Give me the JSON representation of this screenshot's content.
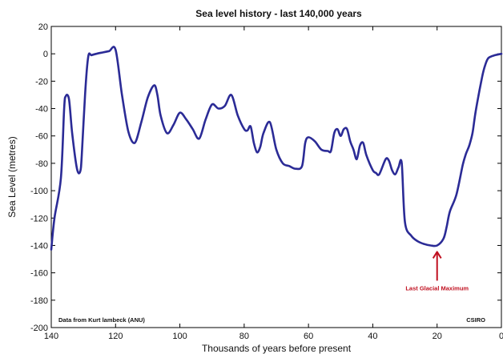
{
  "chart_data": {
    "type": "line",
    "title": "Sea level history - last 140,000 years",
    "xlabel": "Thousands of years before present",
    "ylabel": "Sea Level (metres)",
    "xlim": [
      140,
      0
    ],
    "ylim": [
      -200,
      20
    ],
    "x_reversed": true,
    "grid": false,
    "x_ticks": [
      140,
      120,
      100,
      80,
      60,
      40,
      20,
      0
    ],
    "y_ticks": [
      20,
      0,
      -20,
      -40,
      -60,
      -80,
      -100,
      -120,
      -140,
      -160,
      -180,
      -200
    ],
    "series": [
      {
        "color": "#2b2b96",
        "x": [
          140,
          139,
          137,
          136,
          135.5,
          134.5,
          133.5,
          132,
          131,
          130.5,
          129.5,
          128.5,
          127.5,
          126,
          124,
          122,
          120,
          118,
          116,
          114,
          112,
          110,
          108,
          107,
          106,
          104,
          102,
          100,
          98,
          96,
          94,
          92,
          90,
          88,
          86,
          84,
          82,
          80,
          79,
          78,
          77,
          76,
          75,
          74,
          72,
          70,
          68,
          66,
          64,
          62,
          61,
          60,
          58,
          56,
          54,
          53,
          52,
          51,
          50,
          49,
          48,
          47,
          46,
          45,
          44,
          43,
          42,
          40,
          39,
          38,
          36,
          35,
          34,
          33,
          32,
          31,
          30,
          28,
          26,
          24,
          22,
          20,
          18,
          17,
          16,
          14,
          12,
          11,
          10,
          9,
          8,
          6,
          5,
          4,
          2,
          0
        ],
        "y": [
          -143,
          -120,
          -91,
          -40,
          -31,
          -33,
          -58,
          -84,
          -86,
          -74,
          -30,
          -2,
          -1,
          0,
          1,
          2,
          3,
          -30,
          -57,
          -65,
          -50,
          -32,
          -23,
          -30,
          -45,
          -58,
          -52,
          -43,
          -48,
          -55,
          -62,
          -48,
          -37,
          -40,
          -38,
          -30,
          -45,
          -55,
          -56,
          -53,
          -65,
          -72,
          -68,
          -58,
          -50,
          -70,
          -80,
          -82,
          -84,
          -82,
          -65,
          -61,
          -64,
          -70,
          -71,
          -71,
          -58,
          -55,
          -60,
          -55,
          -55,
          -64,
          -70,
          -77,
          -67,
          -65,
          -74,
          -85,
          -87,
          -88,
          -77,
          -78,
          -85,
          -88,
          -83,
          -80,
          -123,
          -133,
          -137,
          -139,
          -140,
          -140,
          -135,
          -126,
          -115,
          -103,
          -81,
          -73,
          -67,
          -58,
          -42,
          -17,
          -8,
          -3,
          -1,
          0
        ]
      }
    ],
    "annotations": [
      {
        "label": "Last Glacial Maximum",
        "x": 20,
        "y": -140,
        "color": "#c01020"
      }
    ],
    "footnotes": {
      "left": "Data from Kurt lambeck (ANU)",
      "right": "CSIRO"
    }
  }
}
